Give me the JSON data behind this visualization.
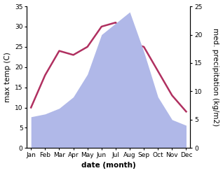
{
  "months": [
    "Jan",
    "Feb",
    "Mar",
    "Apr",
    "May",
    "Jun",
    "Jul",
    "Aug",
    "Sep",
    "Oct",
    "Nov",
    "Dec"
  ],
  "temperature": [
    10,
    18,
    24,
    23,
    25,
    30,
    31,
    26,
    25,
    19,
    13,
    9
  ],
  "precipitation": [
    5.5,
    6,
    7,
    9,
    13,
    20,
    22,
    24,
    17,
    9,
    5,
    4
  ],
  "temp_color": "#b03060",
  "precip_color": "#b0b8e8",
  "temp_ylim": [
    0,
    35
  ],
  "precip_ylim": [
    0,
    25
  ],
  "temp_yticks": [
    0,
    5,
    10,
    15,
    20,
    25,
    30,
    35
  ],
  "precip_yticks": [
    0,
    5,
    10,
    15,
    20,
    25
  ],
  "xlabel": "date (month)",
  "ylabel_left": "max temp (C)",
  "ylabel_right": "med. precipitation (kg/m2)",
  "label_fontsize": 7.5,
  "tick_fontsize": 6.5,
  "line_width": 1.8
}
